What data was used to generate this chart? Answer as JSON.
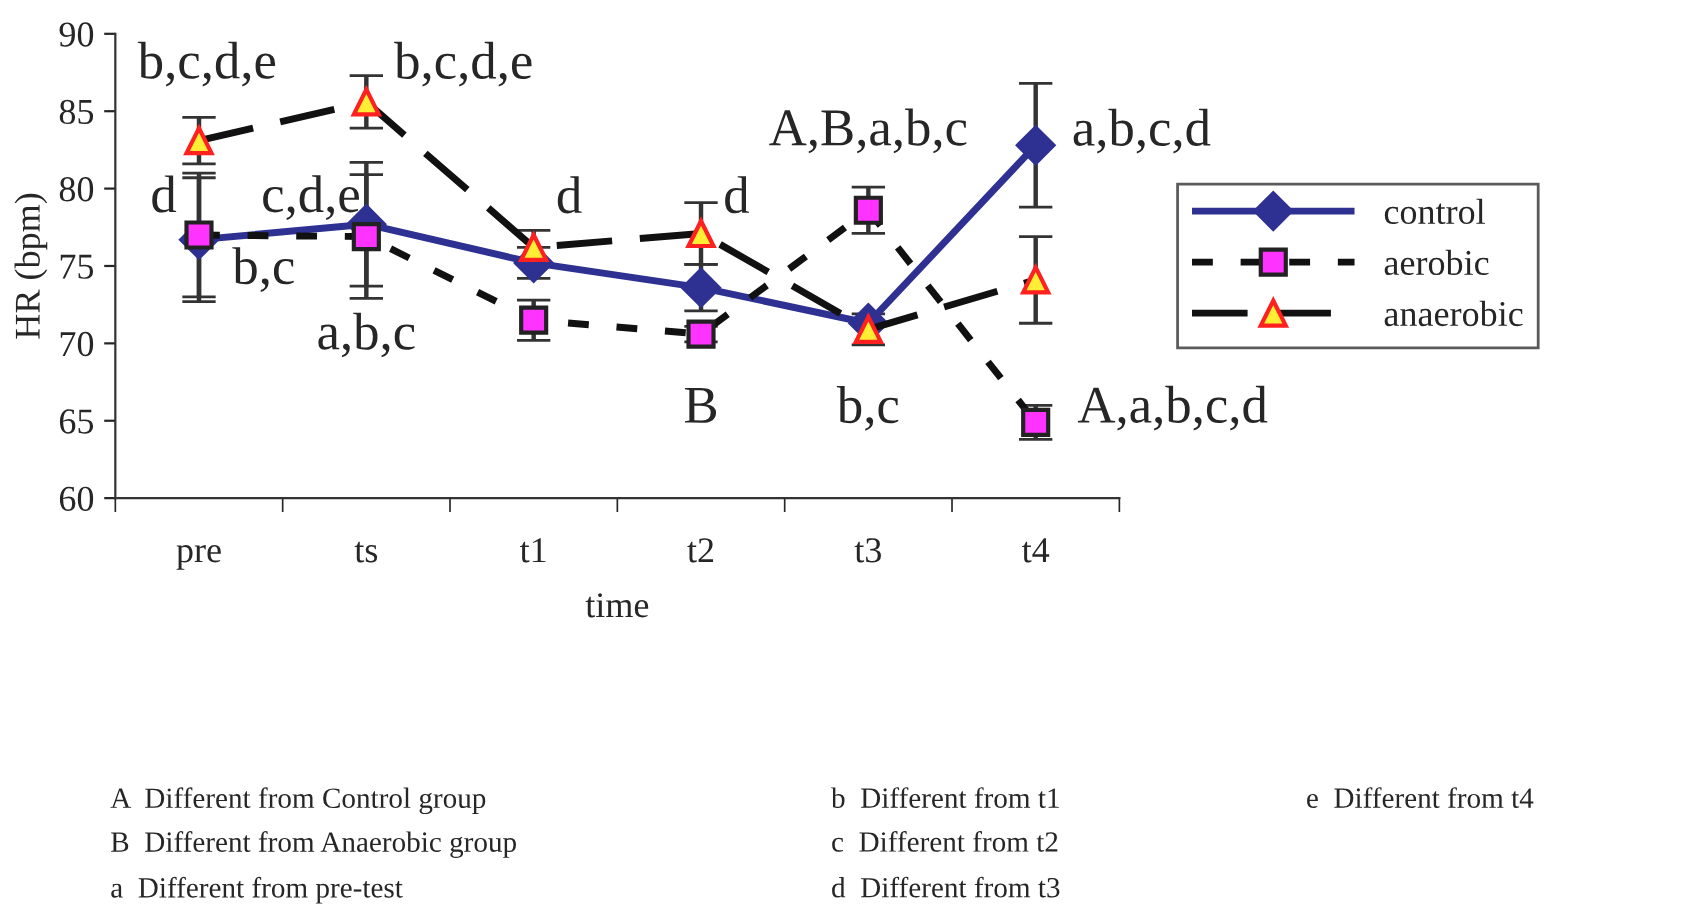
{
  "chart_data": {
    "type": "line",
    "xlabel": "time",
    "ylabel": "HR (bpm)",
    "categories": [
      "pre",
      "ts",
      "t1",
      "t2",
      "t3",
      "t4"
    ],
    "ylim": [
      60,
      90
    ],
    "yticks": [
      60,
      65,
      70,
      75,
      80,
      85,
      90
    ],
    "grid": false,
    "legend": "right",
    "series": [
      {
        "name": "control",
        "color": "#2e3192",
        "marker": "diamond",
        "line_style": "solid",
        "values": [
          76.7,
          77.7,
          75.2,
          73.6,
          71.3,
          82.8
        ],
        "errors": [
          4,
          4,
          1,
          1.5,
          null,
          4
        ]
      },
      {
        "name": "aerobic",
        "color": "#ff33ff",
        "marker": "square",
        "line_style": "dotted",
        "values": [
          77.0,
          76.9,
          71.5,
          70.6,
          78.6,
          64.9
        ],
        "errors": [
          4,
          4,
          1.3,
          0.5,
          1.5,
          1.1
        ]
      },
      {
        "name": "anaerobic",
        "color": "#ffee33",
        "marker": "triangle",
        "line_style": "dashed",
        "values": [
          83.1,
          85.6,
          76.2,
          77.1,
          70.9,
          74.1
        ],
        "errors": [
          1.5,
          1.7,
          1.1,
          2,
          1,
          2.8
        ]
      }
    ],
    "annotations": [
      {
        "text": "b,c,d,e",
        "x": "pre",
        "y": 83.1
      },
      {
        "text": "b,c,d,e",
        "x": "ts",
        "y": 85.6
      },
      {
        "text": "d",
        "x": "pre",
        "y": 76.7
      },
      {
        "text": "c,d,e",
        "x": "ts",
        "y": 77.7
      },
      {
        "text": "b,c",
        "x": "pre",
        "y": 77.0
      },
      {
        "text": "a,b,c",
        "x": "ts",
        "y": 76.9
      },
      {
        "text": "d",
        "x": "t1",
        "y": 76.2
      },
      {
        "text": "d",
        "x": "t2",
        "y": 77.1
      },
      {
        "text": "B",
        "x": "t2",
        "y": 73.6
      },
      {
        "text": "A,B,a,b,c",
        "x": "t3",
        "y": 78.6
      },
      {
        "text": "b,c",
        "x": "t3",
        "y": 70.9
      },
      {
        "text": "a,b,c,d",
        "x": "t4",
        "y": 82.8
      },
      {
        "text": "A,a,b,c,d",
        "x": "t4",
        "y": 64.9
      },
      "A  Different from Control group",
      "B  Different from Anaerobic group",
      "a  Different from pre-test",
      "b  Different from t1",
      "c  Different from t2",
      "d  Different from t3",
      "e  Different from t4"
    ]
  }
}
